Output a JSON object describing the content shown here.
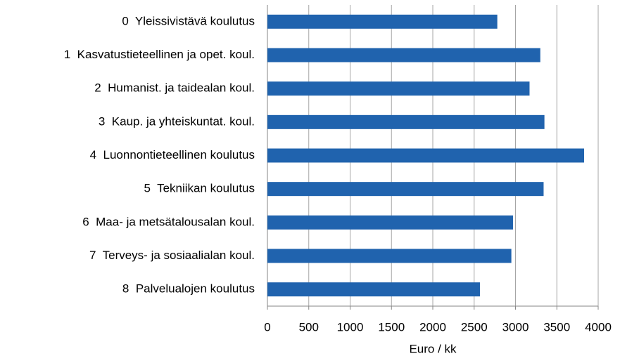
{
  "chart_data": {
    "type": "bar",
    "orientation": "horizontal",
    "categories": [
      "0  Yleissivistävä koulutus",
      "1  Kasvatustieteellinen ja opet. koul.",
      "2  Humanist. ja taidealan koul.",
      "3  Kaup. ja yhteiskuntat. koul.",
      "4  Luonnontieteellinen koulutus",
      "5  Tekniikan koulutus",
      "6  Maa- ja metsätalousalan koul.",
      "7  Terveys- ja sosiaalialan koul.",
      "8  Palvelualojen koulutus"
    ],
    "values": [
      2780,
      3300,
      3170,
      3350,
      3830,
      3340,
      2970,
      2950,
      2570
    ],
    "color": "#2063ae",
    "x_label": "Euro / kk",
    "xlim": [
      0,
      4000
    ],
    "xticks": [
      0,
      500,
      1000,
      1500,
      2000,
      2500,
      3000,
      3500,
      4000
    ],
    "grid": true
  }
}
